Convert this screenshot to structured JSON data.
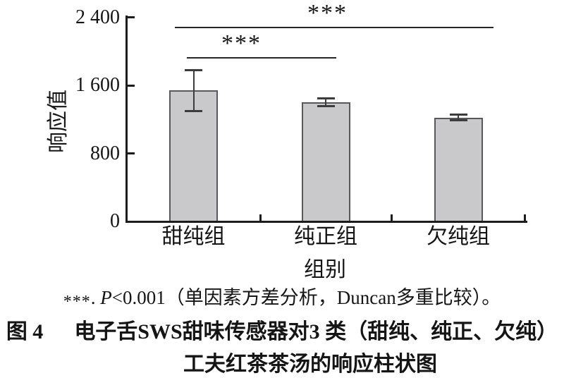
{
  "chart_data": {
    "type": "bar",
    "title": "",
    "categories": [
      "甜纯组",
      "纯正组",
      "欠纯组"
    ],
    "values": [
      1540,
      1405,
      1220
    ],
    "errors": [
      240,
      45,
      33
    ],
    "xlabel": "组别",
    "ylabel": "响应值",
    "ylim": [
      0,
      2400
    ],
    "yticks": [
      {
        "value": 0,
        "label": "0"
      },
      {
        "value": 800,
        "label": "800"
      },
      {
        "value": 1600,
        "label": "1 600"
      },
      {
        "value": 2400,
        "label": "2 400"
      }
    ],
    "grid": false,
    "legend": false,
    "bar_fill_color": "#c9c9cb",
    "bar_border_color": "#58585a",
    "axis_color": "#1c1c1c",
    "significance": [
      {
        "label": "***",
        "between": [
          "甜纯组",
          "欠纯组"
        ],
        "meaning": "P<0.001"
      },
      {
        "label": "***",
        "between": [
          "甜纯组",
          "纯正组"
        ],
        "meaning": "P<0.001"
      }
    ]
  },
  "note": {
    "stars": "***",
    "separator": ". ",
    "p_symbol": "P",
    "rest": "<0.001（单因素方差分析，Duncan多重比较）。"
  },
  "caption": {
    "figure_label": "图 4",
    "line1": "电子舌SWS甜味传感器对3 类（甜纯、纯正、欠纯）",
    "line2": "工夫红茶茶汤的响应柱状图"
  }
}
